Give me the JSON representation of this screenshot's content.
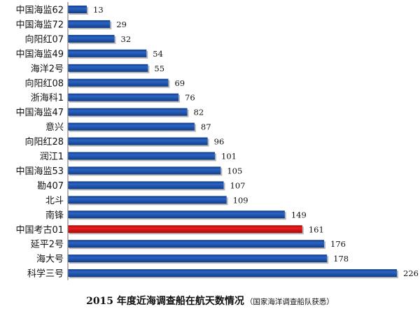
{
  "chart_data": {
    "type": "bar",
    "orientation": "horizontal",
    "title": "2015 年度近海调查船在航天数情况",
    "source_note": "（国家海洋调查船队获悉）",
    "categories": [
      "中国海监62",
      "中国海监72",
      "向阳红07",
      "中国海监49",
      "海洋2号",
      "向阳红08",
      "浙海科1",
      "中国海监47",
      "意兴",
      "向阳红28",
      "润江1",
      "中国海监53",
      "勘407",
      "北斗",
      "南锋",
      "中国考古01",
      "延平2号",
      "海大号",
      "科学三号"
    ],
    "values": [
      13,
      29,
      32,
      54,
      55,
      69,
      76,
      82,
      87,
      96,
      101,
      105,
      107,
      109,
      149,
      161,
      176,
      178,
      226
    ],
    "highlight_category": "中国考古01",
    "xlim": [
      0,
      226
    ],
    "grid": false,
    "legend": "none",
    "colors": {
      "bar": "#2a64c6",
      "bar_dark": "#123d86",
      "highlight": "#ee1c1c",
      "highlight_dark": "#a30c0c",
      "axis": "#808080"
    }
  }
}
